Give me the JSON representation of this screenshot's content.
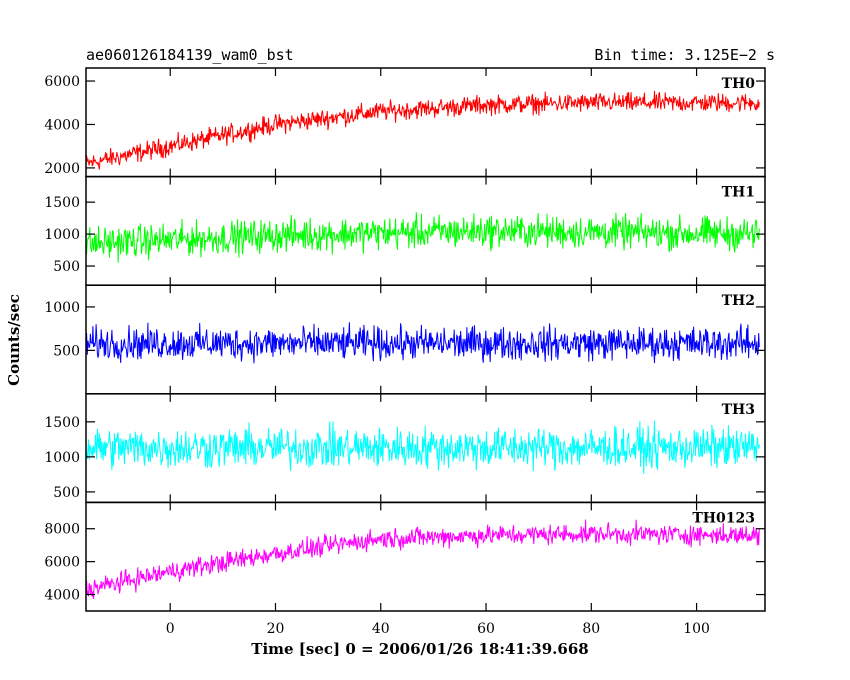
{
  "header": {
    "title": "ae060126184139_wam0_bst",
    "bin_time": "Bin time: 3.125E−2 s"
  },
  "chart_data": {
    "type": "line",
    "xlabel": "Time [sec] 0 = 2006/01/26 18:41:39.668",
    "ylabel": "Counts/sec",
    "xlim": [
      -16,
      113
    ],
    "x_ticks": [
      0,
      20,
      40,
      60,
      80,
      100
    ],
    "x_range": [
      -16,
      112
    ],
    "panels": [
      {
        "name": "TH0",
        "color": "#ff0000",
        "ylim": [
          1600,
          6600
        ],
        "y_ticks": [
          2000,
          4000,
          6000
        ],
        "trend_x": [
          -16,
          0,
          20,
          40,
          60,
          80,
          112
        ],
        "trend_y": [
          2200,
          3000,
          4000,
          4600,
          4900,
          5000,
          5000
        ],
        "noise": 650
      },
      {
        "name": "TH1",
        "color": "#00ff00",
        "ylim": [
          200,
          1900
        ],
        "y_ticks": [
          500,
          1000,
          1500
        ],
        "trend_x": [
          -16,
          20,
          60,
          112
        ],
        "trend_y": [
          850,
          980,
          1050,
          1000
        ],
        "noise": 380
      },
      {
        "name": "TH2",
        "color": "#0000ff",
        "ylim": [
          0,
          1250
        ],
        "y_ticks": [
          500,
          1000
        ],
        "trend_x": [
          -16,
          112
        ],
        "trend_y": [
          580,
          580
        ],
        "noise": 280
      },
      {
        "name": "TH3",
        "color": "#00ffff",
        "ylim": [
          350,
          1900
        ],
        "y_ticks": [
          500,
          1000,
          1500
        ],
        "trend_x": [
          -16,
          112
        ],
        "trend_y": [
          1130,
          1130
        ],
        "noise": 430
      },
      {
        "name": "TH0123",
        "color": "#ff00ff",
        "ylim": [
          3000,
          9600
        ],
        "y_ticks": [
          4000,
          6000,
          8000
        ],
        "trend_x": [
          -16,
          0,
          20,
          40,
          60,
          80,
          112
        ],
        "trend_y": [
          4300,
          5400,
          6500,
          7400,
          7600,
          7700,
          7600
        ],
        "noise": 900
      }
    ]
  }
}
